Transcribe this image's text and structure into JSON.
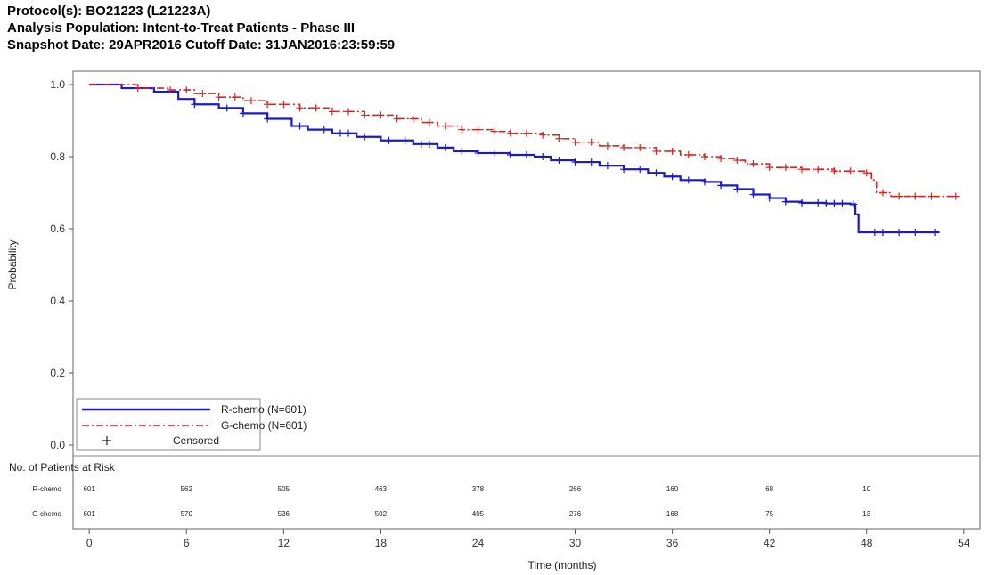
{
  "header": {
    "line1": "Protocol(s): BO21223 (L21223A)",
    "line2": "Analysis Population: Intent-to-Treat Patients - Phase III",
    "line3": "Snapshot Date: 29APR2016  Cutoff Date: 31JAN2016:23:59:59"
  },
  "chart_data": {
    "type": "line",
    "ylabel": "Probability",
    "xlabel": "Time (months)",
    "xlim": [
      -1,
      55
    ],
    "ylim": [
      0.0,
      1.0
    ],
    "x_ticks": [
      0,
      6,
      12,
      18,
      24,
      30,
      36,
      42,
      48,
      54
    ],
    "y_ticks": [
      0.0,
      0.2,
      0.4,
      0.6,
      0.8,
      1.0
    ],
    "grid": false,
    "legend_position": "bottom-left",
    "series": [
      {
        "name": "R-chemo (N=601)",
        "color": "#1a1acc",
        "style": "solid",
        "points": [
          [
            0,
            1.0
          ],
          [
            2,
            0.99
          ],
          [
            4,
            0.98
          ],
          [
            5.5,
            0.96
          ],
          [
            6.5,
            0.945
          ],
          [
            8,
            0.935
          ],
          [
            9.5,
            0.92
          ],
          [
            11,
            0.905
          ],
          [
            12.5,
            0.885
          ],
          [
            13.5,
            0.875
          ],
          [
            15,
            0.865
          ],
          [
            16.5,
            0.855
          ],
          [
            18,
            0.845
          ],
          [
            20,
            0.835
          ],
          [
            21.5,
            0.825
          ],
          [
            22.5,
            0.815
          ],
          [
            24,
            0.81
          ],
          [
            26,
            0.805
          ],
          [
            27.5,
            0.8
          ],
          [
            28.5,
            0.79
          ],
          [
            30,
            0.785
          ],
          [
            31.5,
            0.775
          ],
          [
            33,
            0.765
          ],
          [
            34.5,
            0.755
          ],
          [
            35.5,
            0.745
          ],
          [
            36.5,
            0.735
          ],
          [
            38,
            0.73
          ],
          [
            39,
            0.72
          ],
          [
            40,
            0.71
          ],
          [
            41,
            0.695
          ],
          [
            42,
            0.685
          ],
          [
            43,
            0.675
          ],
          [
            44,
            0.672
          ],
          [
            45.5,
            0.67
          ],
          [
            47,
            0.668
          ],
          [
            47.3,
            0.64
          ],
          [
            47.5,
            0.59
          ],
          [
            50,
            0.59
          ],
          [
            52.5,
            0.59
          ]
        ],
        "censor_x": [
          6.5,
          8.5,
          9.5,
          11,
          13,
          14.5,
          15.5,
          16,
          17,
          18.5,
          19.5,
          20.5,
          21,
          22,
          23,
          24,
          25,
          26,
          27,
          28,
          29,
          30,
          31,
          32,
          33,
          34,
          35,
          36,
          37,
          38,
          39,
          40,
          41,
          42,
          43,
          44,
          45,
          45.5,
          46,
          46.5,
          47.2,
          48.5,
          49,
          50,
          51,
          52.2
        ],
        "risk": [
          601,
          562,
          505,
          463,
          378,
          266,
          160,
          68,
          10
        ]
      },
      {
        "name": "G-chemo (N=601)",
        "color": "#dd2222",
        "style": "dashdot",
        "points": [
          [
            0,
            1.0
          ],
          [
            3,
            0.99
          ],
          [
            5,
            0.985
          ],
          [
            6.5,
            0.975
          ],
          [
            8,
            0.965
          ],
          [
            9.5,
            0.955
          ],
          [
            11,
            0.945
          ],
          [
            13,
            0.935
          ],
          [
            15,
            0.925
          ],
          [
            17,
            0.915
          ],
          [
            19,
            0.905
          ],
          [
            20.5,
            0.895
          ],
          [
            21.5,
            0.885
          ],
          [
            23,
            0.875
          ],
          [
            25,
            0.87
          ],
          [
            26,
            0.865
          ],
          [
            28,
            0.86
          ],
          [
            29,
            0.85
          ],
          [
            30,
            0.84
          ],
          [
            31.5,
            0.83
          ],
          [
            33,
            0.825
          ],
          [
            35,
            0.815
          ],
          [
            36.5,
            0.805
          ],
          [
            38,
            0.8
          ],
          [
            39,
            0.795
          ],
          [
            40,
            0.79
          ],
          [
            40.5,
            0.78
          ],
          [
            42,
            0.77
          ],
          [
            44,
            0.765
          ],
          [
            46,
            0.76
          ],
          [
            48,
            0.755
          ],
          [
            48.3,
            0.735
          ],
          [
            48.6,
            0.7
          ],
          [
            49.5,
            0.69
          ],
          [
            53.5,
            0.69
          ]
        ],
        "censor_x": [
          3,
          5,
          6,
          7,
          8,
          9,
          10,
          11,
          12,
          13,
          14,
          15,
          16,
          17,
          18,
          19,
          20,
          21,
          22,
          23,
          24,
          25,
          26,
          27,
          28,
          29,
          30,
          31,
          32,
          33,
          34,
          35,
          36,
          37,
          38,
          39,
          40,
          41,
          42,
          43,
          44,
          45,
          46,
          47,
          48,
          49,
          50,
          51,
          52,
          53.5
        ],
        "risk": [
          601,
          570,
          536,
          502,
          405,
          276,
          168,
          75,
          13
        ]
      }
    ],
    "legend": {
      "entries": [
        "R-chemo (N=601)",
        "G-chemo (N=601)"
      ],
      "censored_label": "Censored",
      "censored_symbol": "+"
    },
    "risk_table": {
      "title": "No. of Patients at Risk",
      "row_labels": [
        "R-chemo",
        "G-chemo"
      ],
      "times": [
        0,
        6,
        12,
        18,
        24,
        30,
        36,
        42,
        48
      ]
    }
  }
}
